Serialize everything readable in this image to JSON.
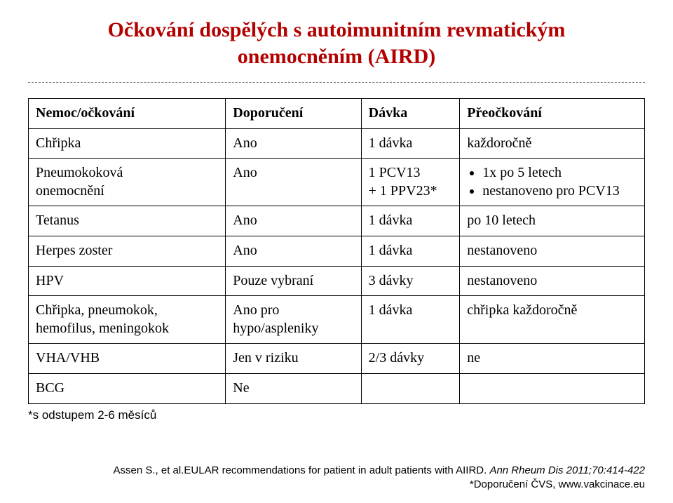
{
  "title_line1": "Očkování dospělých s autoimunitním revmatickým",
  "title_line2": "onemocněním (AIRD)",
  "headers": {
    "c1": "Nemoc/očkování",
    "c2": "Doporučení",
    "c3": "Dávka",
    "c4": "Přeočkování"
  },
  "rows": {
    "r1": {
      "c1": "Chřipka",
      "c2": "Ano",
      "c3": "1 dávka",
      "c4": "každoročně"
    },
    "r2": {
      "c1a": "Pneumokoková",
      "c1b": "onemocnění",
      "c2": "Ano",
      "c3a": "1 PCV13",
      "c3b": "+ 1 PPV23*",
      "c4_li1": "1x po 5 letech",
      "c4_li2": "nestanoveno pro PCV13"
    },
    "r3": {
      "c1": "Tetanus",
      "c2": "Ano",
      "c3": "1 dávka",
      "c4": "po 10 letech"
    },
    "r4": {
      "c1": "Herpes zoster",
      "c2": "Ano",
      "c3": "1 dávka",
      "c4": "nestanoveno"
    },
    "r5": {
      "c1": "HPV",
      "c2": "Pouze vybraní",
      "c3": "3 dávky",
      "c4": "nestanoveno"
    },
    "r6": {
      "c1a": "Chřipka, pneumokok,",
      "c1b": "hemofilus, meningokok",
      "c2a": "Ano pro",
      "c2b": "hypo/aspleniky",
      "c3": "1 dávka",
      "c4": "chřipka každoročně"
    },
    "r7": {
      "c1": "VHA/VHB",
      "c2": "Jen v riziku",
      "c3": "2/3 dávky",
      "c4": "ne"
    },
    "r8": {
      "c1": "BCG",
      "c2": "Ne",
      "c3": "",
      "c4": ""
    }
  },
  "footnote": "*s odstupem 2-6 měsíců",
  "citation": {
    "line1a": "Assen S., et al.EULAR recommendations for patient in adult patients with AIIRD. ",
    "line1b": "Ann Rheum Dis 2011;70:414-422",
    "line2": "*Doporučení ČVS, www.vakcinace.eu"
  }
}
